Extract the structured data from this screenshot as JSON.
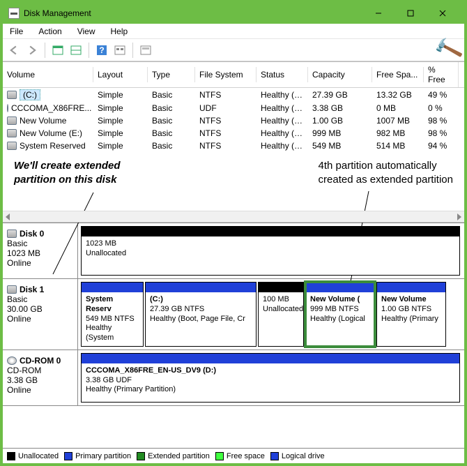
{
  "window": {
    "title": "Disk Management"
  },
  "menu": {
    "file": "File",
    "action": "Action",
    "view": "View",
    "help": "Help"
  },
  "columns": {
    "volume": "Volume",
    "layout": "Layout",
    "type": "Type",
    "fs": "File System",
    "status": "Status",
    "capacity": "Capacity",
    "free": "Free Spa...",
    "pfree": "% Free"
  },
  "volumes": [
    {
      "name": "(C:)",
      "layout": "Simple",
      "type": "Basic",
      "fs": "NTFS",
      "status": "Healthy (B...",
      "cap": "27.39 GB",
      "free": "13.32 GB",
      "pct": "49 %",
      "icon": "disk",
      "sel": true
    },
    {
      "name": "CCCOMA_X86FRE...",
      "layout": "Simple",
      "type": "Basic",
      "fs": "UDF",
      "status": "Healthy (P...",
      "cap": "3.38 GB",
      "free": "0 MB",
      "pct": "0 %",
      "icon": "cd"
    },
    {
      "name": "New Volume",
      "layout": "Simple",
      "type": "Basic",
      "fs": "NTFS",
      "status": "Healthy (P...",
      "cap": "1.00 GB",
      "free": "1007 MB",
      "pct": "98 %",
      "icon": "disk"
    },
    {
      "name": "New Volume (E:)",
      "layout": "Simple",
      "type": "Basic",
      "fs": "NTFS",
      "status": "Healthy (L...",
      "cap": "999 MB",
      "free": "982 MB",
      "pct": "98 %",
      "icon": "disk"
    },
    {
      "name": "System Reserved",
      "layout": "Simple",
      "type": "Basic",
      "fs": "NTFS",
      "status": "Healthy (S...",
      "cap": "549 MB",
      "free": "514 MB",
      "pct": "94 %",
      "icon": "disk"
    }
  ],
  "annotations": {
    "left_l1": "We'll create extended",
    "left_l2": "partition on this disk",
    "right_l1": "4th partition automatically",
    "right_l2": "created as extended partition"
  },
  "disks": {
    "d0": {
      "name": "Disk 0",
      "type": "Basic",
      "size": "1023 MB",
      "state": "Online",
      "part_size": "1023 MB",
      "part_label": "Unallocated"
    },
    "d1": {
      "name": "Disk 1",
      "type": "Basic",
      "size": "30.00 GB",
      "state": "Online",
      "p0": {
        "t": "System Reserv",
        "s": "549 MB NTFS",
        "st": "Healthy (System"
      },
      "p1": {
        "t": "(C:)",
        "s": "27.39 GB NTFS",
        "st": "Healthy (Boot, Page File, Cr"
      },
      "p2": {
        "t": "",
        "s": "100 MB",
        "st": "Unallocated"
      },
      "p3": {
        "t": "New Volume (",
        "s": "999 MB NTFS",
        "st": "Healthy (Logical"
      },
      "p4": {
        "t": "New Volume",
        "s": "1.00 GB NTFS",
        "st": "Healthy (Primary"
      }
    },
    "cd": {
      "name": "CD-ROM 0",
      "type": "CD-ROM",
      "size": "3.38 GB",
      "state": "Online",
      "t": "CCCOMA_X86FRE_EN-US_DV9  (D:)",
      "s": "3.38 GB UDF",
      "st": "Healthy (Primary Partition)"
    }
  },
  "legend": {
    "unalloc": "Unallocated",
    "primary": "Primary partition",
    "ext": "Extended partition",
    "free": "Free space",
    "logical": "Logical drive"
  },
  "colors": {
    "black": "#000000",
    "blue": "#2040d8",
    "green": "#228b22",
    "lgreen": "#40ff40",
    "white": "#ffffff"
  }
}
